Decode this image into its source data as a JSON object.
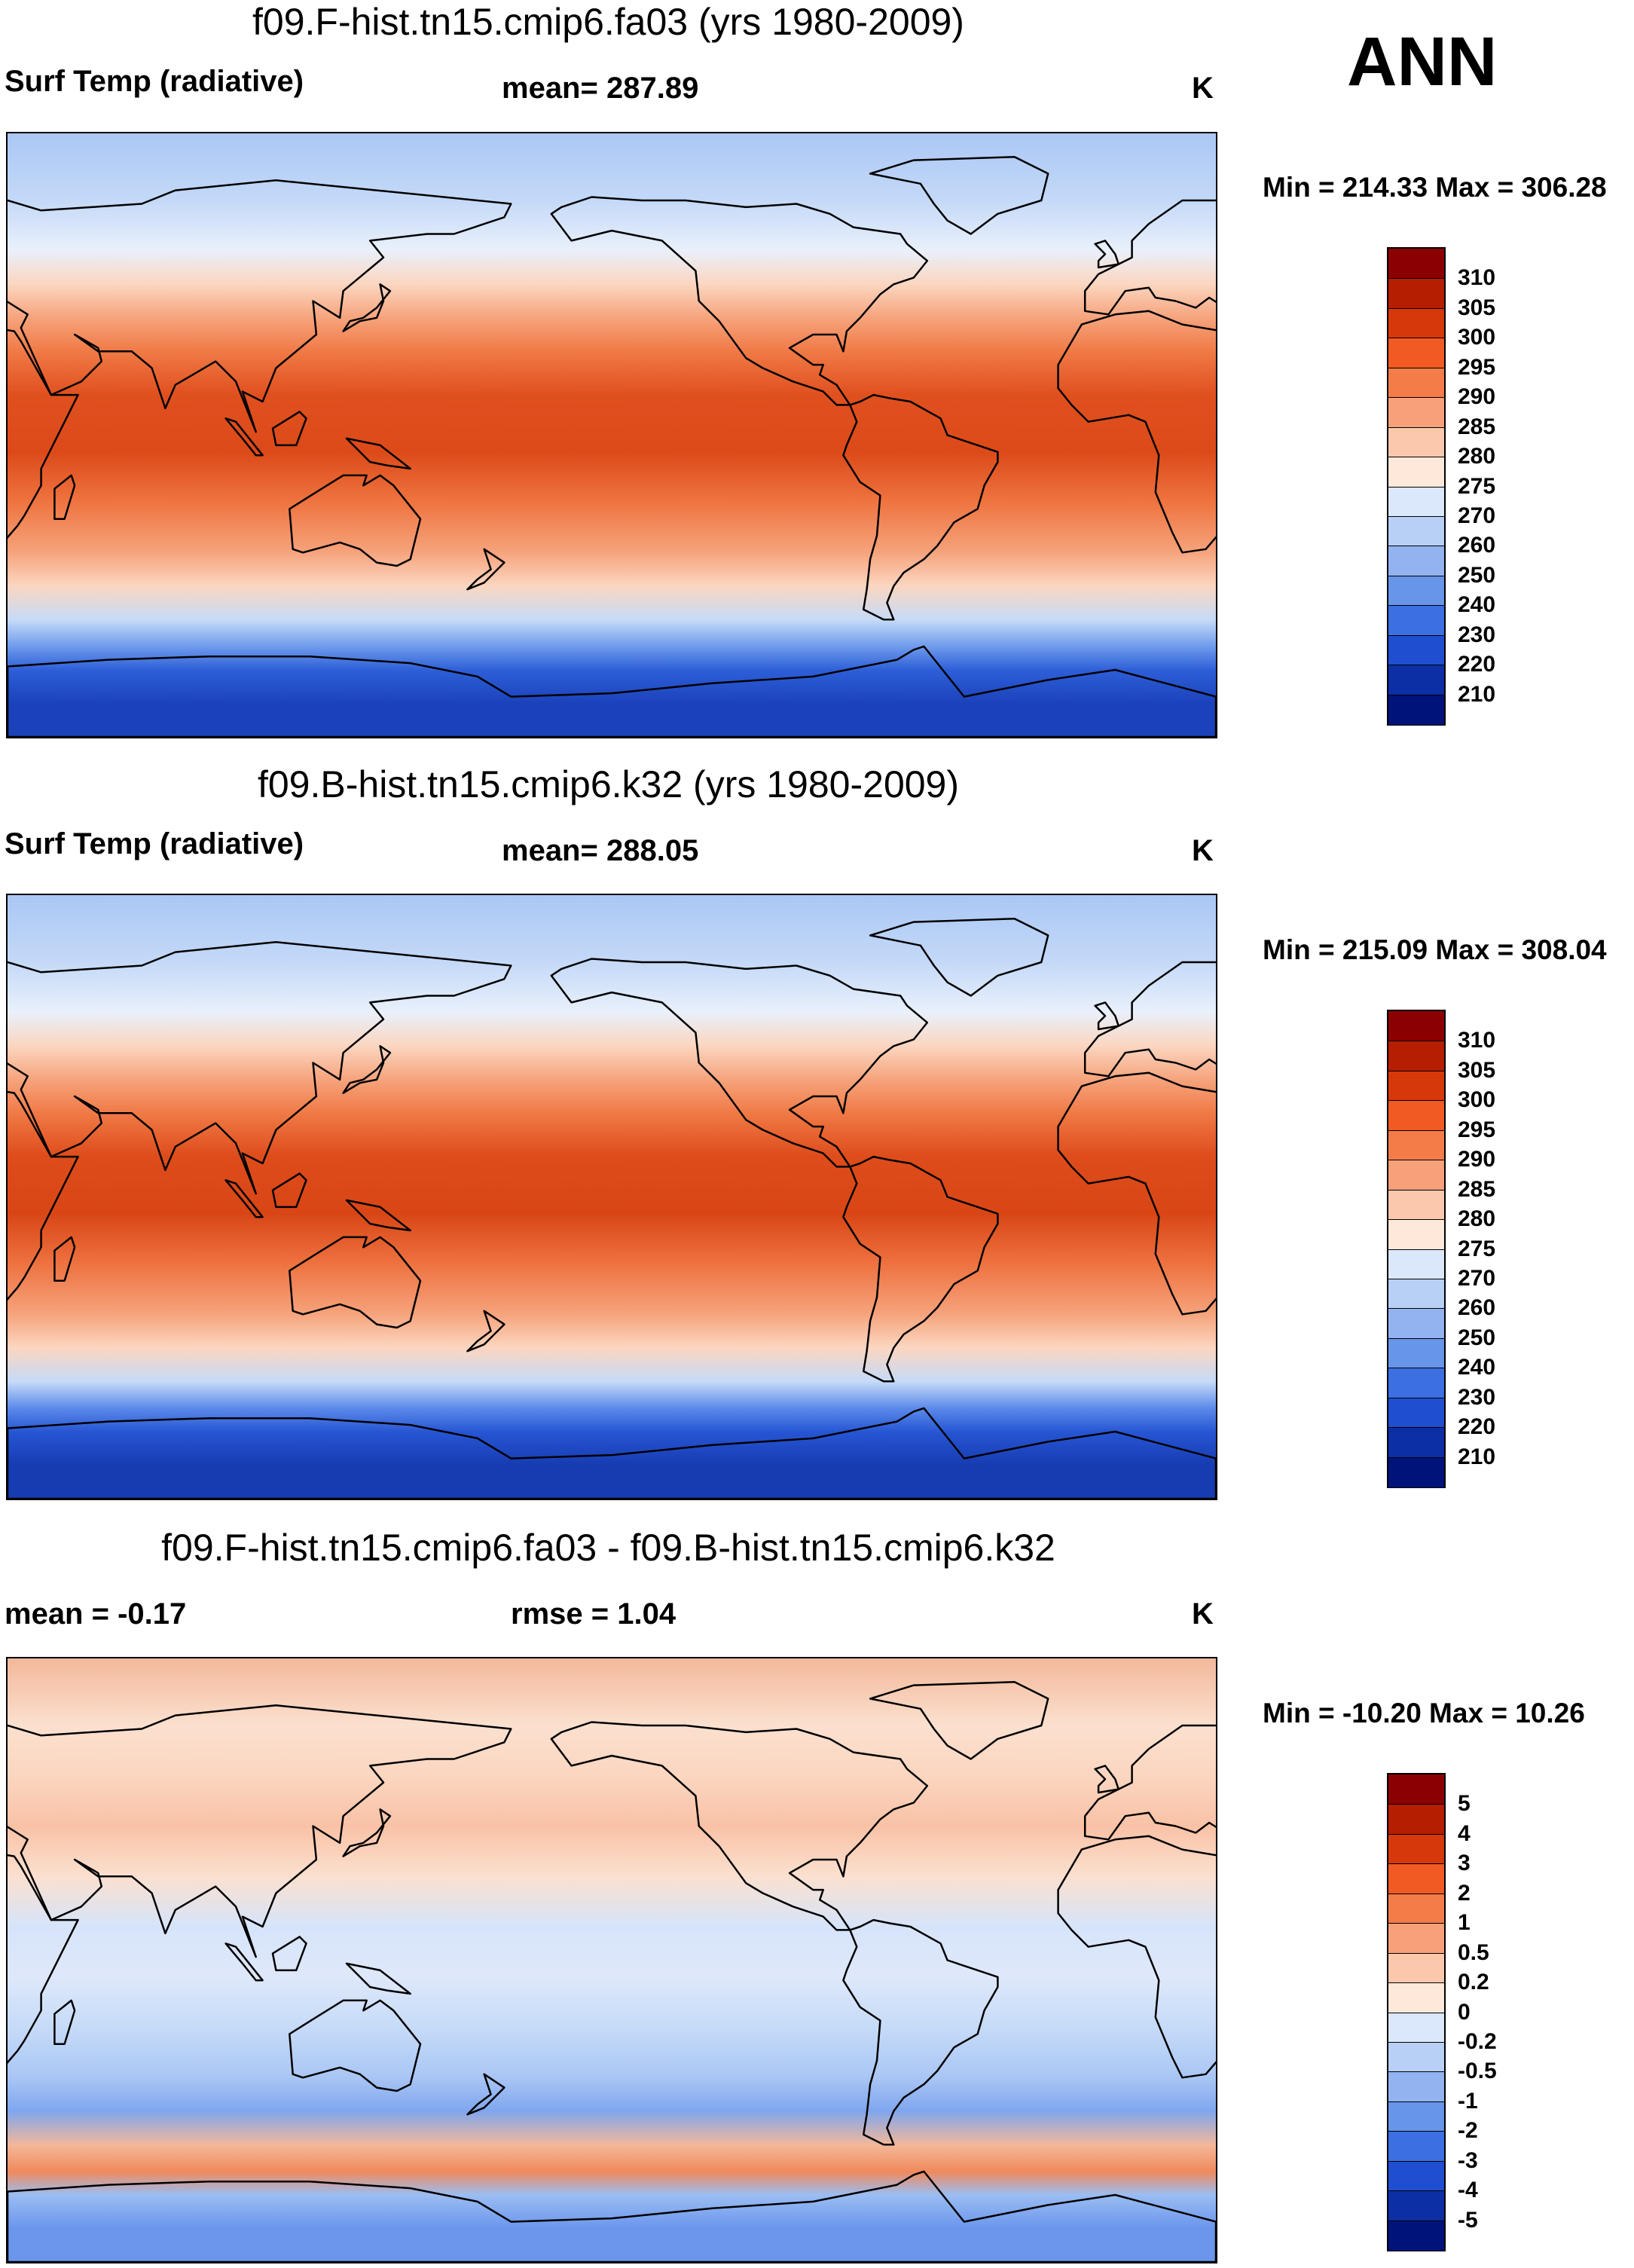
{
  "season": "ANN",
  "panels": [
    {
      "title": "f09.F-hist.tn15.cmip6.fa03 (yrs 1980-2009)",
      "left_label": "Surf Temp (radiative)",
      "center_label": "mean= 287.89",
      "units": "K",
      "minmax": "Min = 214.33 Max = 306.28",
      "colorbar": {
        "labels": [
          "310",
          "305",
          "300",
          "295",
          "290",
          "285",
          "280",
          "275",
          "270",
          "260",
          "250",
          "240",
          "230",
          "220",
          "210"
        ],
        "colors": [
          "#8b0000",
          "#b51e00",
          "#d7380a",
          "#f15a22",
          "#f47c48",
          "#f8a07a",
          "#fcc8ab",
          "#fde8da",
          "#dbe8fb",
          "#b8cff6",
          "#92b3f0",
          "#6795ea",
          "#3c6fe2",
          "#1f4fd0",
          "#0c2fa6",
          "#00137a"
        ]
      },
      "map": {
        "bands": [
          {
            "lat": 90,
            "color": "#aac7f4"
          },
          {
            "lat": 70,
            "color": "#c4d9f8"
          },
          {
            "lat": 55,
            "color": "#e9f0fb"
          },
          {
            "lat": 45,
            "color": "#fbd6c0"
          },
          {
            "lat": 35,
            "color": "#f6a37c"
          },
          {
            "lat": 25,
            "color": "#f07a46"
          },
          {
            "lat": 12,
            "color": "#e0501f"
          },
          {
            "lat": -5,
            "color": "#dc4a19"
          },
          {
            "lat": -20,
            "color": "#ef7440"
          },
          {
            "lat": -35,
            "color": "#f6a37c"
          },
          {
            "lat": -45,
            "color": "#fbd6c0"
          },
          {
            "lat": -55,
            "color": "#c6dbf8"
          },
          {
            "lat": -63,
            "color": "#6f9bec"
          },
          {
            "lat": -70,
            "color": "#2e5fd8"
          },
          {
            "lat": -80,
            "color": "#1b42bb"
          },
          {
            "lat": -90,
            "color": "#1b42bb"
          }
        ]
      }
    },
    {
      "title": "f09.B-hist.tn15.cmip6.k32 (yrs 1980-2009)",
      "left_label": "Surf Temp (radiative)",
      "center_label": "mean= 288.05",
      "units": "K",
      "minmax": "Min = 215.09 Max = 308.04",
      "colorbar": {
        "labels": [
          "310",
          "305",
          "300",
          "295",
          "290",
          "285",
          "280",
          "275",
          "270",
          "260",
          "250",
          "240",
          "230",
          "220",
          "210"
        ],
        "colors": [
          "#8b0000",
          "#b51e00",
          "#d7380a",
          "#f15a22",
          "#f47c48",
          "#f8a07a",
          "#fcc8ab",
          "#fde8da",
          "#dbe8fb",
          "#b8cff6",
          "#92b3f0",
          "#6795ea",
          "#3c6fe2",
          "#1f4fd0",
          "#0c2fa6",
          "#00137a"
        ]
      },
      "map": {
        "bands": [
          {
            "lat": 90,
            "color": "#aac7f4"
          },
          {
            "lat": 70,
            "color": "#c4d9f8"
          },
          {
            "lat": 55,
            "color": "#e9f0fb"
          },
          {
            "lat": 45,
            "color": "#fbd6c0"
          },
          {
            "lat": 35,
            "color": "#f6a37c"
          },
          {
            "lat": 25,
            "color": "#f07a46"
          },
          {
            "lat": 12,
            "color": "#de4c1b"
          },
          {
            "lat": -5,
            "color": "#d94616"
          },
          {
            "lat": -20,
            "color": "#ee7240"
          },
          {
            "lat": -35,
            "color": "#f6a37c"
          },
          {
            "lat": -45,
            "color": "#fbd6c0"
          },
          {
            "lat": -55,
            "color": "#c6dbf8"
          },
          {
            "lat": -63,
            "color": "#5c8aea"
          },
          {
            "lat": -70,
            "color": "#2756d4"
          },
          {
            "lat": -80,
            "color": "#173cb2"
          },
          {
            "lat": -90,
            "color": "#173cb2"
          }
        ]
      }
    },
    {
      "title": "f09.F-hist.tn15.cmip6.fa03 - f09.B-hist.tn15.cmip6.k32",
      "left_label": "mean =  -0.17",
      "center_label": "rmse =   1.04",
      "units": "K",
      "minmax": "Min = -10.20 Max =  10.26",
      "colorbar": {
        "labels": [
          "5",
          "4",
          "3",
          "2",
          "1",
          "0.5",
          "0.2",
          "0",
          "-0.2",
          "-0.5",
          "-1",
          "-2",
          "-3",
          "-4",
          "-5"
        ],
        "colors": [
          "#8b0000",
          "#b51e00",
          "#d7380a",
          "#f15a22",
          "#f47c48",
          "#f8a07a",
          "#fcc8ab",
          "#fde8da",
          "#dbe8fb",
          "#b8cff6",
          "#92b3f0",
          "#6795ea",
          "#3c6fe2",
          "#1f4fd0",
          "#0c2fa6",
          "#00137a"
        ]
      },
      "map": {
        "bands": [
          {
            "lat": 90,
            "color": "#f3b89a"
          },
          {
            "lat": 70,
            "color": "#fbe0cf"
          },
          {
            "lat": 55,
            "color": "#fbd6c0"
          },
          {
            "lat": 40,
            "color": "#f9c2a6"
          },
          {
            "lat": 25,
            "color": "#fbe0cf"
          },
          {
            "lat": 10,
            "color": "#d6e4fa"
          },
          {
            "lat": -5,
            "color": "#dfe8fa"
          },
          {
            "lat": -20,
            "color": "#c6dbf8"
          },
          {
            "lat": -35,
            "color": "#a9c6f4"
          },
          {
            "lat": -45,
            "color": "#7fa6ee"
          },
          {
            "lat": -55,
            "color": "#f3b89a"
          },
          {
            "lat": -63,
            "color": "#f08a5c"
          },
          {
            "lat": -70,
            "color": "#9bbdf3"
          },
          {
            "lat": -80,
            "color": "#6b96ec"
          },
          {
            "lat": -90,
            "color": "#6b96ec"
          }
        ]
      }
    }
  ]
}
